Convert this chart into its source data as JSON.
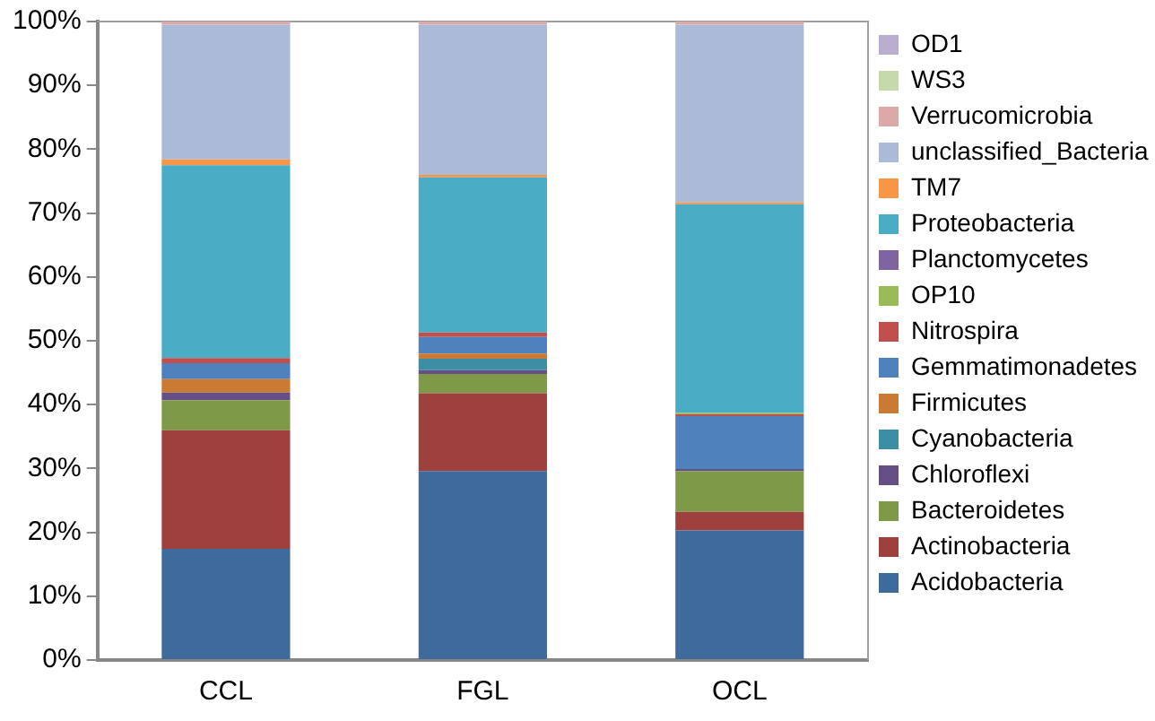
{
  "chart_data": {
    "type": "bar",
    "stacked": true,
    "categories": [
      "CCL",
      "FGL",
      "OCL"
    ],
    "series": [
      {
        "name": "Acidobacteria",
        "color": "#3f6a9c",
        "values": [
          17.4,
          29.6,
          20.3
        ]
      },
      {
        "name": "Actinobacteria",
        "color": "#9d403e",
        "values": [
          18.6,
          12.2,
          2.9
        ]
      },
      {
        "name": "Bacteroidetes",
        "color": "#7e9a48",
        "values": [
          4.7,
          3.0,
          6.4
        ]
      },
      {
        "name": "Chloroflexi",
        "color": "#664f86",
        "values": [
          1.2,
          0.6,
          0.3
        ]
      },
      {
        "name": "Cyanobacteria",
        "color": "#3b8ea4",
        "values": [
          0,
          1.8,
          0
        ]
      },
      {
        "name": "Firmicutes",
        "color": "#cb7a34",
        "values": [
          2.1,
          0.8,
          0
        ]
      },
      {
        "name": "Gemmatimonadetes",
        "color": "#4f81bd",
        "values": [
          2.5,
          2.6,
          8.3
        ]
      },
      {
        "name": "Nitrospira",
        "color": "#c0504d",
        "values": [
          0.8,
          0.7,
          0.3
        ]
      },
      {
        "name": "OP10",
        "color": "#9bbb59",
        "values": [
          0,
          0,
          0.2
        ]
      },
      {
        "name": "Planctomycetes",
        "color": "#8064a2",
        "values": [
          0,
          0,
          0
        ]
      },
      {
        "name": "Proteobacteria",
        "color": "#4bacc6",
        "values": [
          30.2,
          24.3,
          32.7
        ]
      },
      {
        "name": "TM7",
        "color": "#f79646",
        "values": [
          0.9,
          0.4,
          0.3
        ]
      },
      {
        "name": "unclassified_Bacteria",
        "color": "#aabad7",
        "values": [
          21.1,
          23.5,
          27.8
        ]
      },
      {
        "name": "Verrucomicrobia",
        "color": "#dca9a8",
        "values": [
          0.5,
          0.5,
          0.5
        ]
      },
      {
        "name": "WS3",
        "color": "#c6d9aa",
        "values": [
          0,
          0,
          0
        ]
      },
      {
        "name": "OD1",
        "color": "#b9aed0",
        "values": [
          0,
          0,
          0
        ]
      }
    ],
    "ylim": [
      0,
      100
    ],
    "yticks": [
      {
        "value": 0,
        "label": "0%"
      },
      {
        "value": 10,
        "label": "10%"
      },
      {
        "value": 20,
        "label": "20%"
      },
      {
        "value": 30,
        "label": "30%"
      },
      {
        "value": 40,
        "label": "40%"
      },
      {
        "value": 50,
        "label": "50%"
      },
      {
        "value": 60,
        "label": "60%"
      },
      {
        "value": 70,
        "label": "70%"
      },
      {
        "value": 80,
        "label": "80%"
      },
      {
        "value": 90,
        "label": "90%"
      },
      {
        "value": 100,
        "label": "100%"
      }
    ],
    "grid": false,
    "legend": "right"
  }
}
